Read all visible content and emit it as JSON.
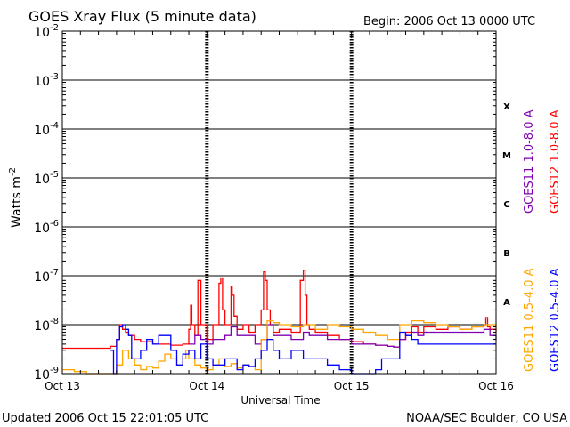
{
  "chart_data": {
    "type": "line",
    "title": "GOES Xray Flux (5 minute data)",
    "begin_label": "Begin:  2006 Oct 13 0000 UTC",
    "ylabel": "Watts m",
    "ylabel_sup": "-2",
    "xlabel": "Universal Time",
    "yscale": "log",
    "ylim": [
      1e-09,
      0.01
    ],
    "xlim": [
      0,
      72
    ],
    "x_unit": "hours since 2006 Oct 13 0000 UTC",
    "y_ticks": [
      {
        "base": "10",
        "exp": "-2",
        "value": 0.01
      },
      {
        "base": "10",
        "exp": "-3",
        "value": 0.001
      },
      {
        "base": "10",
        "exp": "-4",
        "value": 0.0001
      },
      {
        "base": "10",
        "exp": "-5",
        "value": 1e-05
      },
      {
        "base": "10",
        "exp": "-6",
        "value": 1e-06
      },
      {
        "base": "10",
        "exp": "-7",
        "value": 1e-07
      },
      {
        "base": "10",
        "exp": "-8",
        "value": 1e-08
      },
      {
        "base": "10",
        "exp": "-9",
        "value": 1e-09
      }
    ],
    "x_ticks": [
      {
        "label": "Oct 13",
        "hour": 0
      },
      {
        "label": "Oct 14",
        "hour": 24
      },
      {
        "label": "Oct 15",
        "hour": 48
      },
      {
        "label": "Oct 16",
        "hour": 72
      }
    ],
    "flare_classes": [
      {
        "label": "X",
        "value": 0.0003
      },
      {
        "label": "M",
        "value": 3e-05
      },
      {
        "label": "C",
        "value": 3e-06
      },
      {
        "label": "B",
        "value": 3e-07
      },
      {
        "label": "A",
        "value": 3e-08
      }
    ],
    "legend": [
      {
        "name": "GOES11 1.0-8.0 A",
        "color": "#7f00b2"
      },
      {
        "name": "GOES12 1.0-8.0 A",
        "color": "#ff0000"
      },
      {
        "name": "GOES11 0.5-4.0 A",
        "color": "#ffa500"
      },
      {
        "name": "GOES12 0.5-4.0 A",
        "color": "#0000ff"
      }
    ],
    "series": [
      {
        "name": "GOES12 1.0-8.0 A",
        "color": "#ff0000",
        "x": [
          0,
          5,
          8,
          9,
          9.5,
          10,
          10.5,
          11,
          12,
          13,
          15,
          18,
          20,
          21,
          21.3,
          21.5,
          22,
          22.5,
          23,
          24,
          25,
          26,
          26.3,
          26.6,
          27,
          28,
          28.2,
          28.5,
          29,
          30,
          31,
          32,
          33,
          33.4,
          33.7,
          34,
          34.5,
          35,
          36,
          38,
          39.5,
          40,
          40.3,
          40.6,
          41,
          42,
          44,
          46,
          48,
          50,
          52,
          54,
          55,
          56,
          57,
          58,
          59,
          60,
          62,
          64,
          66,
          68,
          70,
          70.3,
          70.6,
          71,
          72
        ],
        "y": [
          3.3e-09,
          3.3e-09,
          3.6e-09,
          5e-09,
          1e-08,
          8e-09,
          7e-09,
          6e-09,
          5e-09,
          4.5e-09,
          4e-09,
          3.8e-09,
          4e-09,
          8e-09,
          2.5e-08,
          1e-08,
          6e-09,
          8e-08,
          1e-08,
          5e-09,
          1e-08,
          7e-08,
          9e-08,
          2e-08,
          1e-08,
          6e-08,
          4e-08,
          1.5e-08,
          8e-09,
          1e-08,
          7e-09,
          1e-08,
          2e-08,
          1.2e-07,
          8e-08,
          2e-08,
          1e-08,
          7e-09,
          8e-09,
          7e-09,
          8e-08,
          1.3e-07,
          4e-08,
          1e-08,
          8e-09,
          7e-09,
          6e-09,
          5e-09,
          4.5e-09,
          4e-09,
          3.8e-09,
          3.6e-09,
          3.5e-09,
          5e-09,
          7e-09,
          9e-09,
          7e-09,
          9e-09,
          8e-09,
          9e-09,
          8e-09,
          9e-09,
          1e-08,
          1.4e-08,
          9e-09,
          8e-09,
          7e-09
        ]
      },
      {
        "name": "GOES11 1.0-8.0 A",
        "color": "#7f00b2",
        "x": [
          21,
          22,
          23,
          24,
          25,
          26,
          27,
          28,
          29,
          30,
          32,
          33,
          34,
          35,
          36,
          38,
          40,
          41,
          42,
          44,
          46,
          48,
          50,
          52,
          54,
          55,
          56,
          57,
          58,
          59,
          60,
          62,
          64,
          66,
          68,
          70,
          71,
          72
        ],
        "y": [
          4e-09,
          6e-09,
          5e-09,
          4e-09,
          5e-09,
          5e-09,
          6e-09,
          9e-09,
          6e-09,
          6e-09,
          4e-09,
          5e-09,
          1e-08,
          6e-09,
          6e-09,
          5e-09,
          7e-09,
          6e-09,
          6e-09,
          5e-09,
          5e-09,
          4e-09,
          4e-09,
          3.8e-09,
          3.6e-09,
          3.5e-09,
          5e-09,
          6e-09,
          7e-09,
          6e-09,
          7e-09,
          7e-09,
          7e-09,
          7e-09,
          7e-09,
          8e-09,
          6e-09,
          5e-09
        ]
      },
      {
        "name": "GOES11 0.5-4.0 A",
        "color": "#ffa500",
        "x": [
          0,
          2,
          4,
          6,
          8,
          9,
          10,
          11,
          12,
          13,
          14,
          15,
          16,
          17,
          18,
          19,
          20,
          20.5,
          21,
          22,
          23,
          24,
          25,
          26,
          27,
          28,
          29,
          30,
          31,
          32,
          33,
          34,
          35,
          36,
          38,
          40,
          42,
          44,
          46,
          48,
          50,
          52,
          54,
          56,
          58,
          60,
          62,
          64,
          66,
          68,
          70,
          72
        ],
        "y": [
          1.2e-09,
          1.1e-09,
          1e-09,
          1e-09,
          1e-09,
          1.5e-09,
          3e-09,
          2e-09,
          1.5e-09,
          1.2e-09,
          1.4e-09,
          1.3e-09,
          1.8e-09,
          2.5e-09,
          2e-09,
          1.5e-09,
          2e-09,
          3e-09,
          2e-09,
          1.5e-09,
          1.3e-09,
          1.2e-09,
          1.5e-09,
          2e-09,
          1.4e-09,
          1.6e-09,
          1.3e-09,
          1.5e-09,
          1.4e-09,
          1.2e-09,
          5e-09,
          1.2e-08,
          1.1e-08,
          1e-08,
          9e-09,
          1e-08,
          8e-09,
          1e-08,
          9e-09,
          8e-09,
          7e-09,
          6e-09,
          5e-09,
          1e-08,
          1.2e-08,
          1.1e-08,
          1e-08,
          9e-09,
          8e-09,
          9e-09,
          1e-08,
          8e-09
        ]
      },
      {
        "name": "GOES12 0.5-4.0 A",
        "color": "#0000ff",
        "x": [
          8,
          8.5,
          9,
          9.5,
          10,
          10.5,
          11,
          11.5,
          12,
          13,
          14,
          15,
          16,
          18,
          19,
          20,
          21,
          22,
          23,
          24,
          25,
          26,
          27,
          28,
          29,
          30,
          31,
          32,
          33,
          34,
          35,
          36,
          38,
          40,
          42,
          44,
          46,
          47,
          48,
          50,
          52,
          53,
          54,
          56,
          57,
          58,
          59,
          60,
          62,
          64,
          66,
          68,
          70,
          71,
          72
        ],
        "y": [
          3e-09,
          1e-09,
          5e-09,
          9e-09,
          1e-08,
          8e-09,
          6e-09,
          2e-09,
          2e-09,
          3e-09,
          5e-09,
          4e-09,
          6e-09,
          3e-09,
          1.5e-09,
          2.5e-09,
          3e-09,
          2e-09,
          4e-09,
          2e-09,
          1.5e-09,
          1.5e-09,
          2e-09,
          2e-09,
          1.2e-09,
          1.5e-09,
          1.4e-09,
          2e-09,
          3e-09,
          5e-09,
          3e-09,
          2e-09,
          3e-09,
          2e-09,
          2e-09,
          1.5e-09,
          1.2e-09,
          1.2e-09,
          1e-09,
          1e-09,
          1.2e-09,
          2e-09,
          2e-09,
          7e-09,
          6e-09,
          5e-09,
          4e-09,
          4e-09,
          4e-09,
          4e-09,
          4e-09,
          4e-09,
          4e-09,
          4e-09,
          4e-09
        ]
      }
    ]
  },
  "footer": {
    "updated": "Updated 2006 Oct 15 22:01:05 UTC",
    "credit": "NOAA/SEC Boulder, CO USA"
  }
}
